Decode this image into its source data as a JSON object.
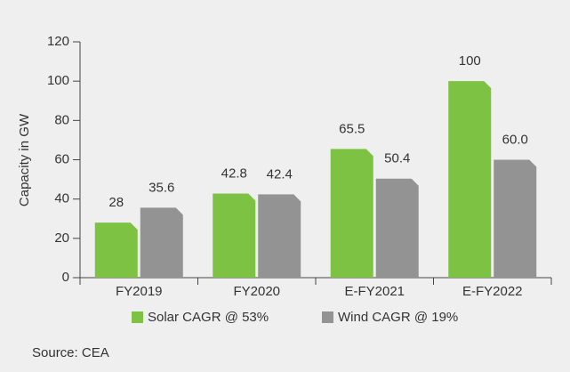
{
  "chart_data": {
    "type": "bar",
    "categories": [
      "FY2019",
      "FY2020",
      "E-FY2021",
      "E-FY2022"
    ],
    "series": [
      {
        "name": "Solar CAGR @ 53%",
        "color": "#7dc242",
        "values": [
          28,
          42.8,
          65.5,
          100
        ]
      },
      {
        "name": "Wind CAGR @ 19%",
        "color": "#939393",
        "values": [
          35.6,
          42.4,
          50.4,
          60
        ],
        "value_labels": [
          "35.6",
          "42.4",
          "50.4",
          "60.0"
        ]
      }
    ],
    "y_label": "Capacity in GW",
    "ylim": [
      0,
      120
    ],
    "yticks": [
      0,
      20,
      40,
      60,
      80,
      100,
      120
    ],
    "source": "Source: CEA"
  }
}
